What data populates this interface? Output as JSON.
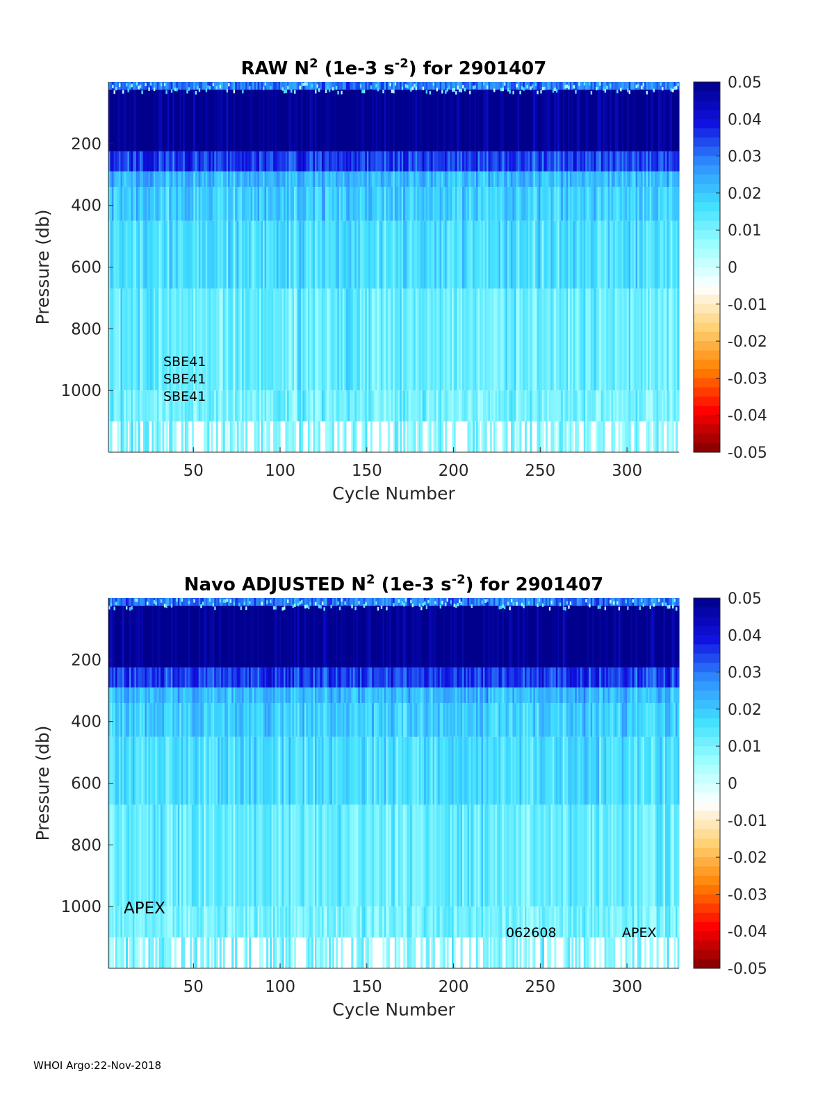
{
  "footer": "WHOI Argo:22-Nov-2018",
  "chart_data": [
    {
      "type": "heatmap",
      "title_prefix": "RAW N",
      "title_sup1": "2",
      "title_mid": " (1e-3 s",
      "title_sup2": "-2",
      "title_suffix": ") for 2901407",
      "xlabel": "Cycle Number",
      "ylabel": "Pressure (db)",
      "xlim": [
        1,
        330
      ],
      "ylim": [
        0,
        1200
      ],
      "y_reversed": true,
      "xticks": [
        50,
        100,
        150,
        200,
        250,
        300
      ],
      "yticks": [
        200,
        400,
        600,
        800,
        1000
      ],
      "clim": [
        -0.05,
        0.05
      ],
      "colorbar_ticks": [
        "0.05",
        "0.04",
        "0.03",
        "0.02",
        "0.01",
        "0",
        "-0.01",
        "-0.02",
        "-0.03",
        "-0.04",
        "-0.05"
      ],
      "colormap": [
        "#800000",
        "#ff0000",
        "#ff8000",
        "#ffd070",
        "#ffffff",
        "#a0ffff",
        "#40e0ff",
        "#3090ff",
        "#1010e0",
        "#00008c"
      ],
      "pressure_bands": [
        {
          "p0": 0,
          "p1": 25,
          "value": 0.03
        },
        {
          "p0": 25,
          "p1": 225,
          "value": 0.05
        },
        {
          "p0": 225,
          "p1": 290,
          "value": 0.035
        },
        {
          "p0": 290,
          "p1": 340,
          "value": 0.022
        },
        {
          "p0": 340,
          "p1": 450,
          "value": 0.019
        },
        {
          "p0": 450,
          "p1": 670,
          "value": 0.016
        },
        {
          "p0": 670,
          "p1": 1000,
          "value": 0.012
        },
        {
          "p0": 1000,
          "p1": 1100,
          "value": 0.01
        },
        {
          "p0": 1100,
          "p1": 1200,
          "value": 0.009
        }
      ],
      "annotations": [
        "SBE41",
        "SBE41",
        "SBE41"
      ]
    },
    {
      "type": "heatmap",
      "title_prefix": "Navo  ADJUSTED N",
      "title_sup1": "2",
      "title_mid": " (1e-3 s",
      "title_sup2": "-2",
      "title_suffix": ") for 2901407",
      "xlabel": "Cycle Number",
      "ylabel": "Pressure (db)",
      "xlim": [
        1,
        330
      ],
      "ylim": [
        0,
        1200
      ],
      "y_reversed": true,
      "xticks": [
        50,
        100,
        150,
        200,
        250,
        300
      ],
      "yticks": [
        200,
        400,
        600,
        800,
        1000
      ],
      "clim": [
        -0.05,
        0.05
      ],
      "colorbar_ticks": [
        "0.05",
        "0.04",
        "0.03",
        "0.02",
        "0.01",
        "0",
        "-0.01",
        "-0.02",
        "-0.03",
        "-0.04",
        "-0.05"
      ],
      "colormap": [
        "#800000",
        "#ff0000",
        "#ff8000",
        "#ffd070",
        "#ffffff",
        "#a0ffff",
        "#40e0ff",
        "#3090ff",
        "#1010e0",
        "#00008c"
      ],
      "pressure_bands": [
        {
          "p0": 0,
          "p1": 25,
          "value": 0.03
        },
        {
          "p0": 25,
          "p1": 225,
          "value": 0.05
        },
        {
          "p0": 225,
          "p1": 290,
          "value": 0.035
        },
        {
          "p0": 290,
          "p1": 340,
          "value": 0.022
        },
        {
          "p0": 340,
          "p1": 450,
          "value": 0.019
        },
        {
          "p0": 450,
          "p1": 670,
          "value": 0.016
        },
        {
          "p0": 670,
          "p1": 1000,
          "value": 0.012
        },
        {
          "p0": 1000,
          "p1": 1100,
          "value": 0.01
        },
        {
          "p0": 1100,
          "p1": 1200,
          "value": 0.009
        }
      ],
      "annotations": [
        "APEX",
        "062608",
        "APEX"
      ]
    }
  ]
}
